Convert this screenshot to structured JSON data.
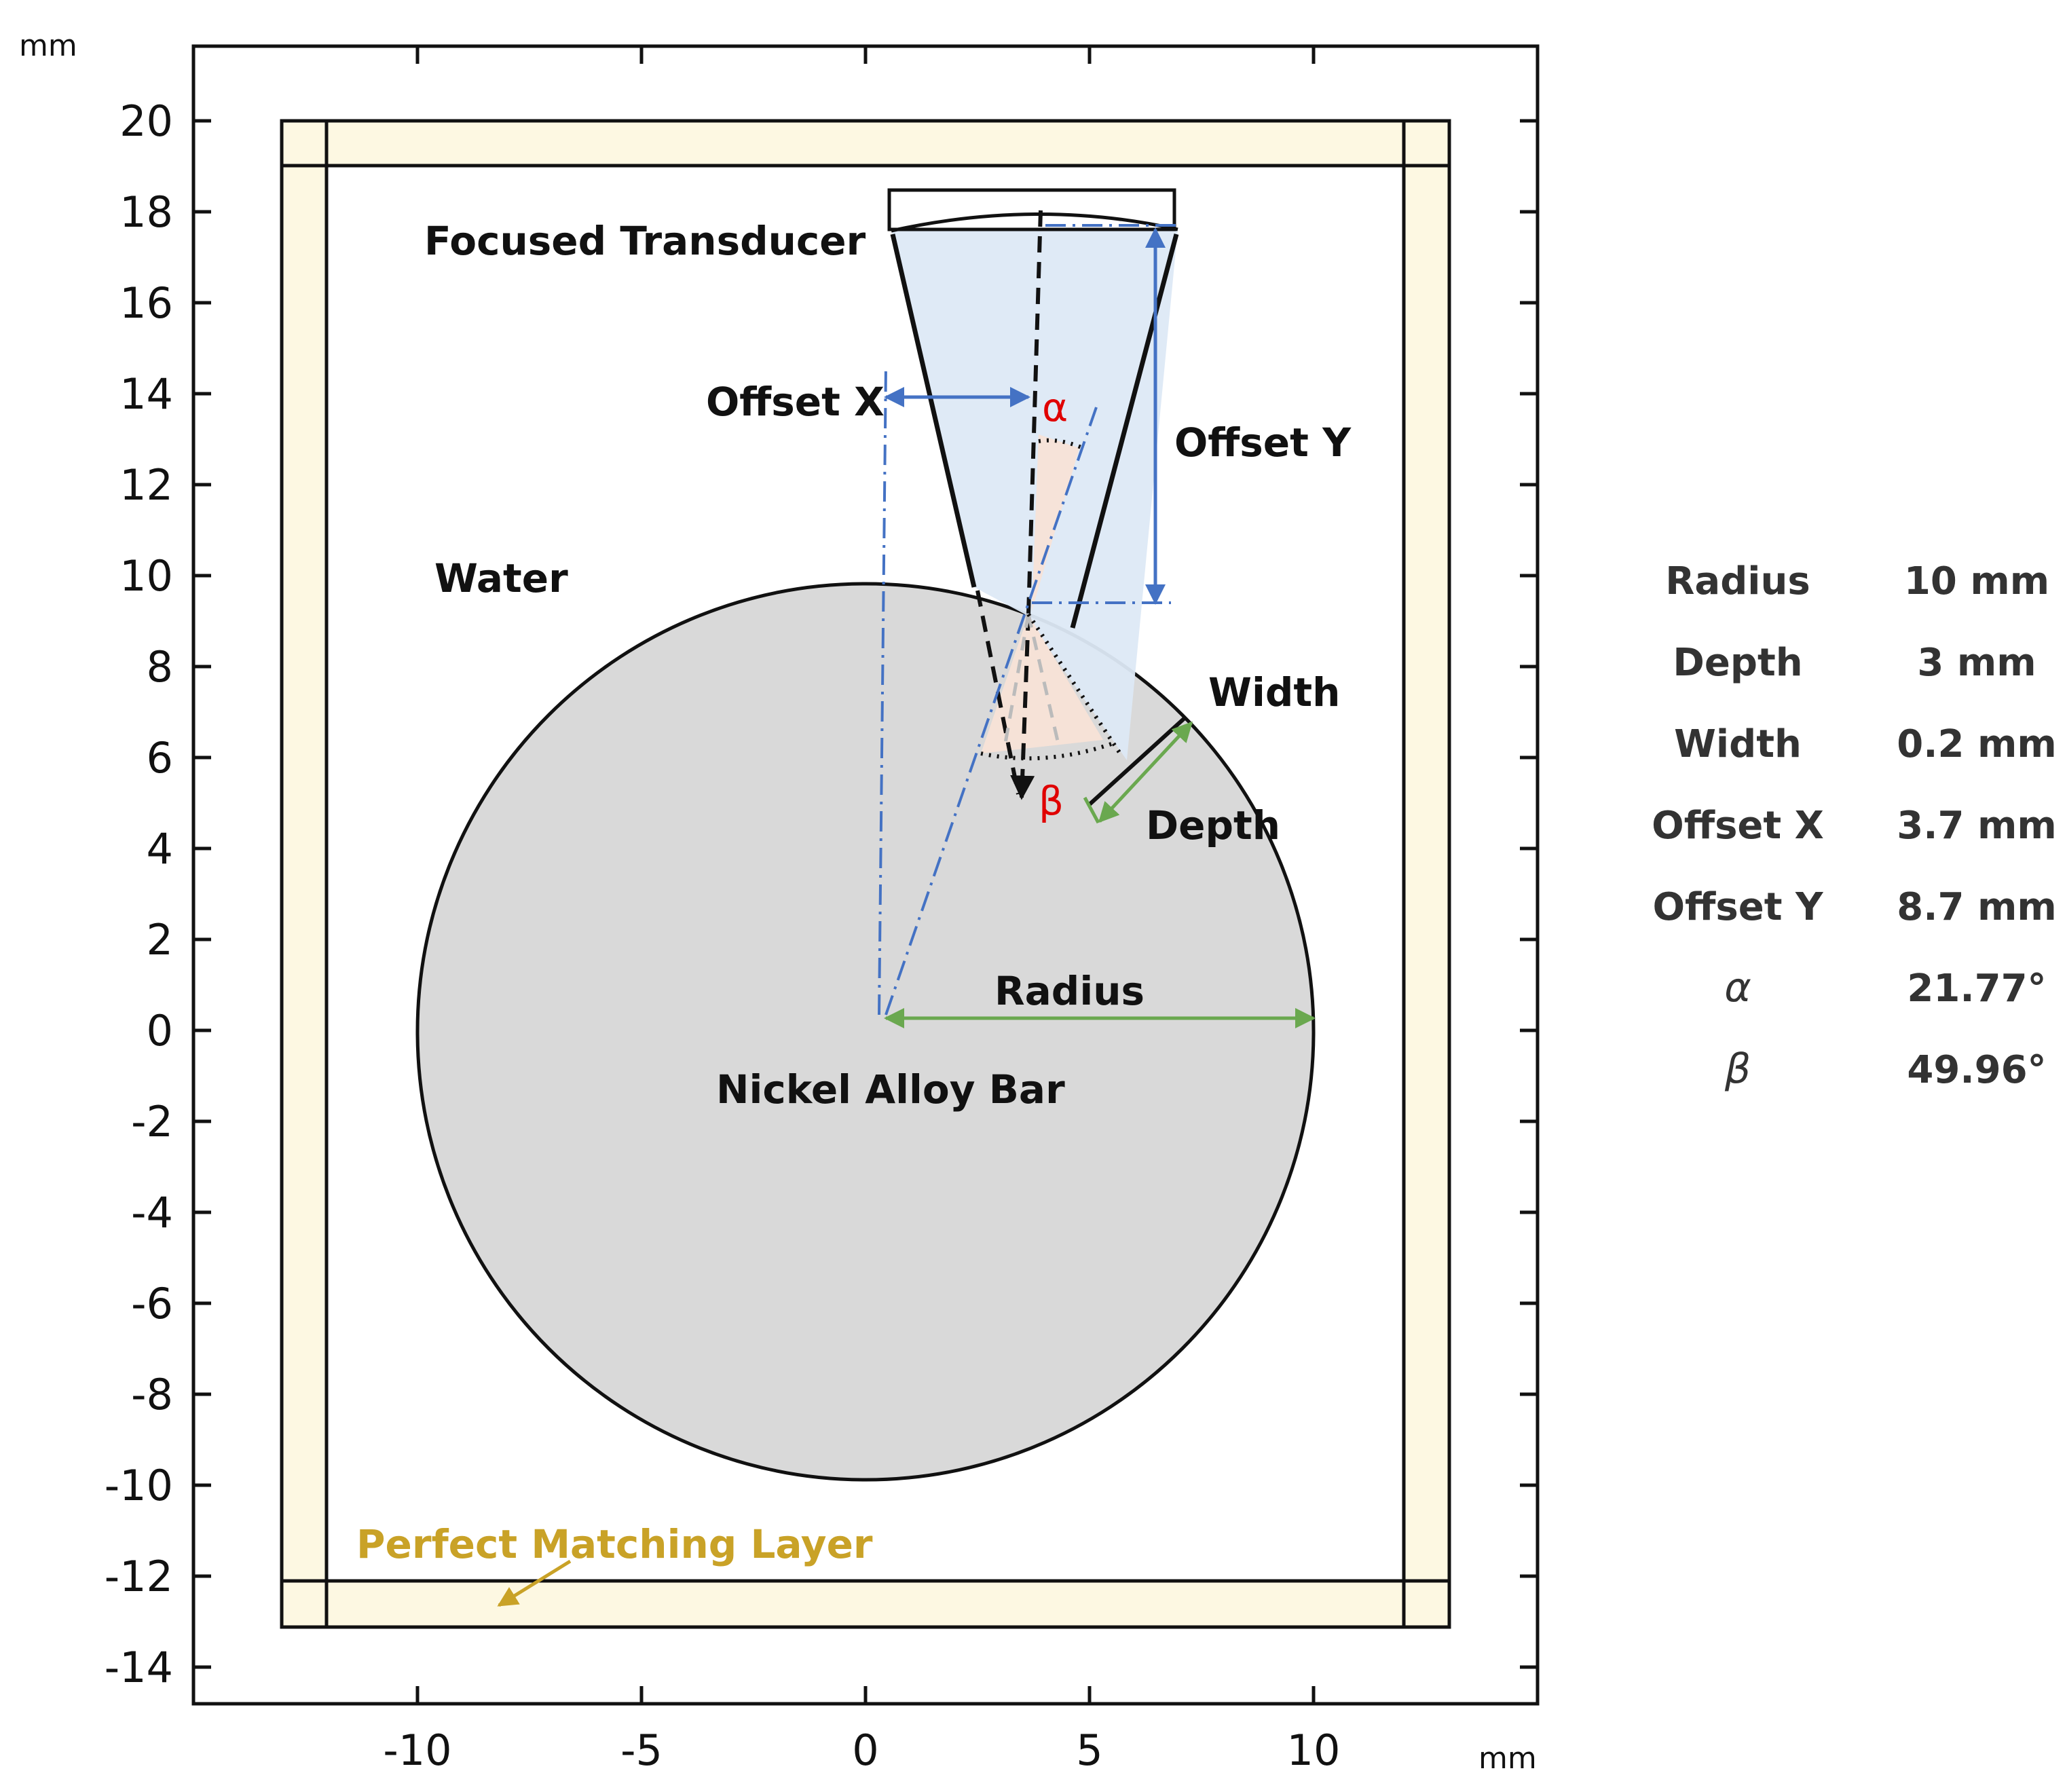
{
  "axes": {
    "x_unit": "mm",
    "y_unit": "mm",
    "x_ticks": [
      "-10",
      "-5",
      "0",
      "5",
      "10"
    ],
    "y_ticks": [
      "20",
      "18",
      "16",
      "14",
      "12",
      "10",
      "8",
      "6",
      "4",
      "2",
      "0",
      "-2",
      "-4",
      "-6",
      "-8",
      "-10",
      "-12",
      "-14"
    ]
  },
  "labels": {
    "transducer": "Focused Transducer",
    "offset_x": "Offset X",
    "offset_y": "Offset Y",
    "alpha": "α",
    "beta": "β",
    "water": "Water",
    "width": "Width",
    "depth": "Depth",
    "radius": "Radius",
    "bar": "Nickel Alloy Bar",
    "pml": "Perfect Matching Layer"
  },
  "parameters": [
    {
      "name": "Radius",
      "value": "10 mm"
    },
    {
      "name": "Depth",
      "value": "3 mm"
    },
    {
      "name": "Width",
      "value": "0.2 mm"
    },
    {
      "name": "Offset X",
      "value": "3.7 mm"
    },
    {
      "name": "Offset Y",
      "value": "8.7 mm"
    },
    {
      "name": "α",
      "value": "21.77°"
    },
    {
      "name": "β",
      "value": "49.96°"
    }
  ],
  "colors": {
    "pml_fill": "#fdf8e2",
    "bar_fill": "#d9d9d9",
    "beam_fill": "#dde9f6",
    "angle_fill": "#f8e2d6",
    "dimension_blue": "#4472c4",
    "dimension_green": "#6aa84f",
    "pml_text": "#c9a227",
    "greek_red": "#e00000"
  }
}
